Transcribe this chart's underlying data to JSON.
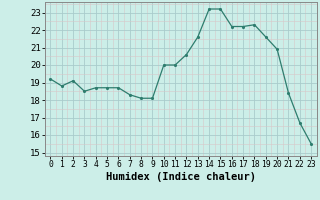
{
  "x": [
    0,
    1,
    2,
    3,
    4,
    5,
    6,
    7,
    8,
    9,
    10,
    11,
    12,
    13,
    14,
    15,
    16,
    17,
    18,
    19,
    20,
    21,
    22,
    23
  ],
  "y": [
    19.2,
    18.8,
    19.1,
    18.5,
    18.7,
    18.7,
    18.7,
    18.3,
    18.1,
    18.1,
    20.0,
    20.0,
    20.6,
    21.6,
    23.2,
    23.2,
    22.2,
    22.2,
    22.3,
    21.6,
    20.9,
    18.4,
    16.7,
    15.5
  ],
  "xlabel": "Humidex (Indice chaleur)",
  "xlim": [
    -0.5,
    23.5
  ],
  "ylim": [
    14.8,
    23.6
  ],
  "yticks": [
    15,
    16,
    17,
    18,
    19,
    20,
    21,
    22,
    23
  ],
  "xticks": [
    0,
    1,
    2,
    3,
    4,
    5,
    6,
    7,
    8,
    9,
    10,
    11,
    12,
    13,
    14,
    15,
    16,
    17,
    18,
    19,
    20,
    21,
    22,
    23
  ],
  "line_color": "#2e7d6e",
  "marker_color": "#2e7d6e",
  "bg_color": "#cceee8",
  "grid_major_color": "#aacccc",
  "grid_minor_color": "#d8c8c8",
  "spine_color": "#888888"
}
